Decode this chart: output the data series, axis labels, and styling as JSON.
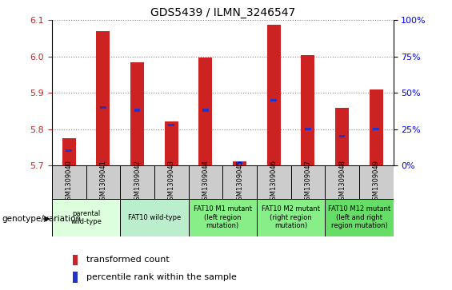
{
  "title": "GDS5439 / ILMN_3246547",
  "samples": [
    "GSM1309040",
    "GSM1309041",
    "GSM1309042",
    "GSM1309043",
    "GSM1309044",
    "GSM1309045",
    "GSM1309046",
    "GSM1309047",
    "GSM1309048",
    "GSM1309049"
  ],
  "red_values": [
    5.775,
    6.07,
    5.985,
    5.82,
    5.998,
    5.71,
    6.088,
    6.003,
    5.858,
    5.91
  ],
  "blue_values_pct": [
    10,
    40,
    38,
    28,
    38,
    2,
    45,
    25,
    20,
    25
  ],
  "ylim": [
    5.7,
    6.1
  ],
  "y2lim": [
    0,
    100
  ],
  "yticks": [
    5.7,
    5.8,
    5.9,
    6.0,
    6.1
  ],
  "y2ticks": [
    0,
    25,
    50,
    75,
    100
  ],
  "y2ticklabels": [
    "0%",
    "25%",
    "50%",
    "75%",
    "100%"
  ],
  "bar_width": 0.4,
  "blue_bar_width": 0.18,
  "red_color": "#cc2222",
  "blue_color": "#2233cc",
  "grid_color": "#888888",
  "sample_bg_color": "#cccccc",
  "genotype_groups": [
    {
      "label": "parental\nwild-type",
      "start": 0,
      "end": 2,
      "color": "#ddffdd"
    },
    {
      "label": "FAT10 wild-type",
      "start": 2,
      "end": 4,
      "color": "#bbeecc"
    },
    {
      "label": "FAT10 M1 mutant\n(left region\nmutation)",
      "start": 4,
      "end": 6,
      "color": "#88ee88"
    },
    {
      "label": "FAT10 M2 mutant\n(right region\nmutation)",
      "start": 6,
      "end": 8,
      "color": "#88ee88"
    },
    {
      "label": "FAT10 M12 mutant\n(left and right\nregion mutation)",
      "start": 8,
      "end": 10,
      "color": "#66dd66"
    }
  ],
  "legend_red_label": "transformed count",
  "legend_blue_label": "percentile rank within the sample",
  "genotype_label": "genotype/variation"
}
